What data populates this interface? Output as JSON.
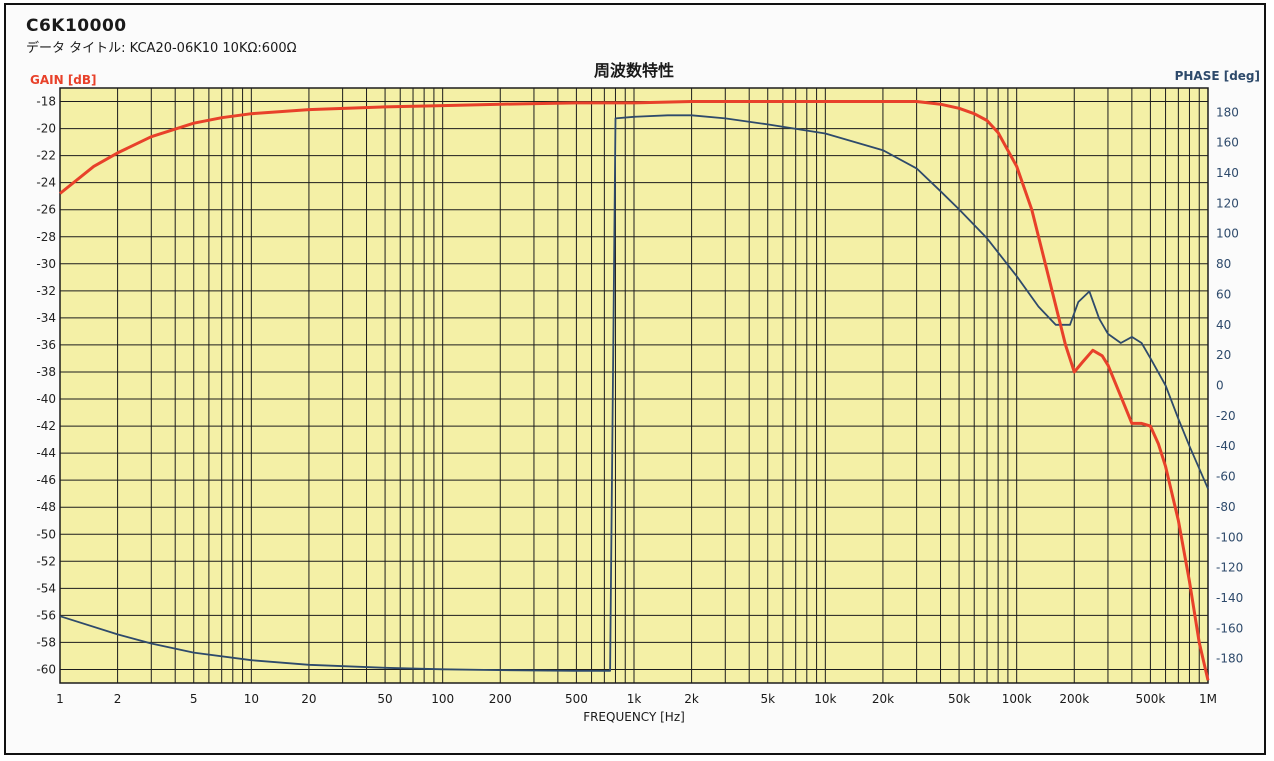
{
  "header": {
    "model": "C6K10000",
    "data_title_label": "データ タイトル:",
    "data_title_value": "KCA20-06K10  10KΩ:600Ω"
  },
  "colors": {
    "plot_bg": "#f4f0a6",
    "grid": "#1c1c1c",
    "gain": "#e8412a",
    "phase": "#2e4a6b",
    "frame": "#111111"
  },
  "chart_data": {
    "type": "line",
    "title": "周波数特性",
    "xlabel": "FREQUENCY [Hz]",
    "ylabel_left": "GAIN [dB]",
    "ylabel_right": "PHASE [deg]",
    "xscale": "log",
    "xlim": [
      1,
      1000000
    ],
    "ylim_left": [
      -61,
      -17
    ],
    "ylim_right": [
      -196,
      196
    ],
    "grid": true,
    "x_ticks": [
      1,
      2,
      5,
      10,
      20,
      50,
      100,
      200,
      500,
      1000,
      2000,
      5000,
      10000,
      20000,
      50000,
      100000,
      200000,
      500000,
      1000000
    ],
    "x_tick_labels": [
      "1",
      "2",
      "5",
      "10",
      "20",
      "50",
      "100",
      "200",
      "500",
      "1k",
      "2k",
      "5k",
      "10k",
      "20k",
      "50k",
      "100k",
      "200k",
      "500k",
      "1M"
    ],
    "y_left_ticks": [
      -18,
      -20,
      -22,
      -24,
      -26,
      -28,
      -30,
      -32,
      -34,
      -36,
      -38,
      -40,
      -42,
      -44,
      -46,
      -48,
      -50,
      -52,
      -54,
      -56,
      -58,
      -60
    ],
    "y_right_ticks": [
      180,
      160,
      140,
      120,
      100,
      80,
      60,
      40,
      20,
      0,
      -20,
      -40,
      -60,
      -80,
      -100,
      -120,
      -140,
      -160,
      -180
    ],
    "series": [
      {
        "name": "GAIN [dB]",
        "axis": "left",
        "x": [
          1,
          1.5,
          2,
          3,
          5,
          7,
          10,
          20,
          50,
          100,
          200,
          500,
          1000,
          2000,
          5000,
          10000,
          20000,
          30000,
          40000,
          50000,
          60000,
          70000,
          80000,
          100000,
          120000,
          150000,
          180000,
          200000,
          220000,
          250000,
          280000,
          300000,
          350000,
          400000,
          450000,
          500000,
          550000,
          600000,
          700000,
          800000,
          900000,
          1000000
        ],
        "y": [
          -24.8,
          -22.8,
          -21.8,
          -20.6,
          -19.6,
          -19.2,
          -18.9,
          -18.6,
          -18.4,
          -18.3,
          -18.2,
          -18.1,
          -18.1,
          -18.0,
          -18.0,
          -18.0,
          -18.0,
          -18.0,
          -18.2,
          -18.5,
          -18.9,
          -19.4,
          -20.3,
          -22.8,
          -26.0,
          -31.5,
          -36.0,
          -38.0,
          -37.3,
          -36.4,
          -36.8,
          -37.5,
          -39.8,
          -41.8,
          -41.8,
          -42.0,
          -43.3,
          -45.0,
          -49.0,
          -53.5,
          -58.0,
          -60.8
        ]
      },
      {
        "name": "PHASE [deg]",
        "axis": "right",
        "x": [
          1,
          2,
          3,
          5,
          10,
          20,
          50,
          100,
          200,
          500,
          700,
          750,
          800,
          1000,
          1500,
          2000,
          3000,
          5000,
          10000,
          20000,
          30000,
          40000,
          50000,
          70000,
          100000,
          130000,
          160000,
          190000,
          210000,
          240000,
          270000,
          300000,
          350000,
          400000,
          450000,
          500000,
          600000,
          700000,
          800000,
          1000000
        ],
        "y": [
          -152,
          -164,
          -170,
          -176,
          -181,
          -184,
          -186,
          -187,
          -187.5,
          -188,
          -188,
          -188,
          176,
          177,
          178,
          178,
          176,
          172,
          166,
          155,
          143,
          128,
          116,
          97,
          72,
          52,
          40,
          40,
          55,
          62,
          44,
          34,
          28,
          32,
          28,
          18,
          0,
          -22,
          -40,
          -68
        ]
      }
    ]
  }
}
